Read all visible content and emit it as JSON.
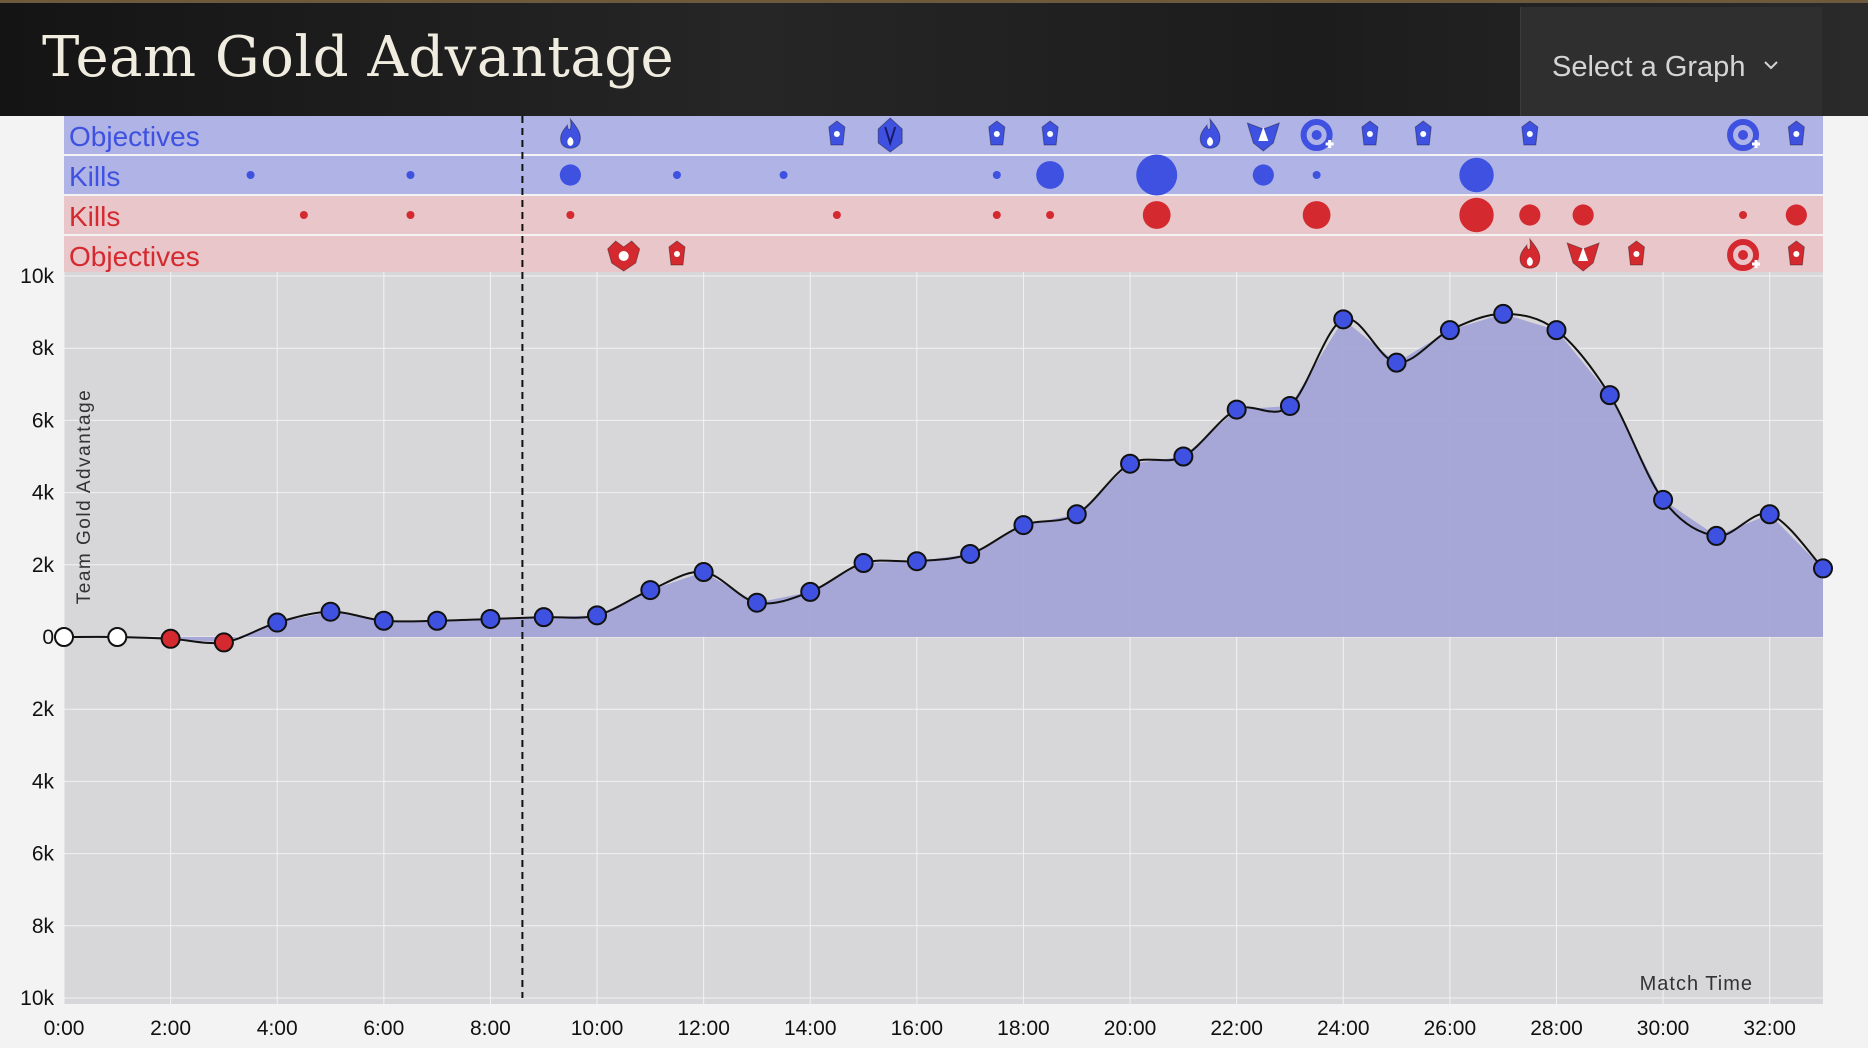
{
  "header": {
    "title": "Team Gold Advantage",
    "graph_select": {
      "label": "Select a Graph",
      "icon": "chevron-down-icon"
    }
  },
  "colors": {
    "blue": "#3f51e0",
    "red": "#d42a2f",
    "area": "#a3a4d6",
    "plot_bg": "#d7d7d9",
    "blue_lane": "#b0b3e6",
    "red_lane": "#e8c6ca"
  },
  "lanes": [
    {
      "label": "Objectives",
      "team": "blue",
      "kind": "objectives"
    },
    {
      "label": "Kills",
      "team": "blue",
      "kind": "kills"
    },
    {
      "label": "Kills",
      "team": "red",
      "kind": "kills"
    },
    {
      "label": "Objectives",
      "team": "red",
      "kind": "objectives"
    }
  ],
  "events": {
    "blue_objectives": [
      {
        "t": 9.5,
        "icon": "fire-dragon-icon"
      },
      {
        "t": 14.5,
        "icon": "tower-icon"
      },
      {
        "t": 15.5,
        "icon": "rift-herald-icon"
      },
      {
        "t": 17.5,
        "icon": "tower-icon"
      },
      {
        "t": 18.5,
        "icon": "tower-icon"
      },
      {
        "t": 21.5,
        "icon": "infernal-dragon-icon"
      },
      {
        "t": 22.5,
        "icon": "baron-icon"
      },
      {
        "t": 23.5,
        "icon": "inhibitor-icon"
      },
      {
        "t": 24.5,
        "icon": "tower-icon"
      },
      {
        "t": 25.5,
        "icon": "tower-icon"
      },
      {
        "t": 27.5,
        "icon": "tower-icon"
      },
      {
        "t": 31.5,
        "icon": "inhibitor-icon"
      },
      {
        "t": 32.5,
        "icon": "tower-icon"
      }
    ],
    "red_objectives": [
      {
        "t": 10.5,
        "icon": "dragon-icon"
      },
      {
        "t": 11.5,
        "icon": "tower-icon"
      },
      {
        "t": 27.5,
        "icon": "infernal-dragon-icon"
      },
      {
        "t": 28.5,
        "icon": "baron-icon"
      },
      {
        "t": 29.5,
        "icon": "tower-icon"
      },
      {
        "t": 31.5,
        "icon": "inhibitor-icon"
      },
      {
        "t": 32.5,
        "icon": "tower-icon"
      }
    ],
    "blue_kills": [
      {
        "t": 3.5,
        "count": 1
      },
      {
        "t": 6.5,
        "count": 1
      },
      {
        "t": 9.5,
        "count": 2
      },
      {
        "t": 11.5,
        "count": 1
      },
      {
        "t": 13.5,
        "count": 1
      },
      {
        "t": 17.5,
        "count": 1
      },
      {
        "t": 18.5,
        "count": 3
      },
      {
        "t": 20.5,
        "count": 5
      },
      {
        "t": 22.5,
        "count": 2
      },
      {
        "t": 23.5,
        "count": 1
      },
      {
        "t": 26.5,
        "count": 4
      }
    ],
    "red_kills": [
      {
        "t": 4.5,
        "count": 1
      },
      {
        "t": 6.5,
        "count": 1
      },
      {
        "t": 9.5,
        "count": 1
      },
      {
        "t": 14.5,
        "count": 1
      },
      {
        "t": 17.5,
        "count": 1
      },
      {
        "t": 18.5,
        "count": 1
      },
      {
        "t": 20.5,
        "count": 3
      },
      {
        "t": 23.5,
        "count": 3
      },
      {
        "t": 26.5,
        "count": 4
      },
      {
        "t": 27.5,
        "count": 2
      },
      {
        "t": 28.5,
        "count": 2
      },
      {
        "t": 31.5,
        "count": 1
      },
      {
        "t": 32.5,
        "count": 2
      }
    ]
  },
  "chart_data": {
    "type": "area",
    "title": "Team Gold Advantage",
    "xlabel": "Match Time",
    "ylabel": "Team Gold Advantage",
    "x_ticks": [
      "0:00",
      "2:00",
      "4:00",
      "6:00",
      "8:00",
      "10:00",
      "12:00",
      "14:00",
      "16:00",
      "18:00",
      "20:00",
      "22:00",
      "24:00",
      "26:00",
      "28:00",
      "30:00",
      "32:00"
    ],
    "y_ticks": [
      "10k",
      "8k",
      "6k",
      "4k",
      "2k",
      "0",
      "2k",
      "4k",
      "6k",
      "8k",
      "10k"
    ],
    "xlim": [
      0,
      33
    ],
    "ylim": [
      -10000,
      10000
    ],
    "grid": true,
    "marker_vertical_line_min": 8.6,
    "series": [
      {
        "x": [
          0,
          1,
          2,
          3,
          4,
          5,
          6,
          7,
          8,
          9,
          10,
          11,
          12,
          13,
          14,
          15,
          16,
          17,
          18,
          19,
          20,
          21,
          22,
          23,
          24,
          25,
          26,
          27,
          28,
          29,
          30,
          31,
          32,
          33
        ],
        "values": [
          0,
          0,
          -50,
          -150,
          400,
          700,
          450,
          450,
          500,
          550,
          600,
          1300,
          1800,
          950,
          1250,
          2050,
          2100,
          2300,
          3100,
          3400,
          4800,
          5000,
          6300,
          6400,
          8800,
          7600,
          8500,
          8950,
          8500,
          6700,
          3800,
          2800,
          3400,
          1900
        ]
      }
    ]
  }
}
